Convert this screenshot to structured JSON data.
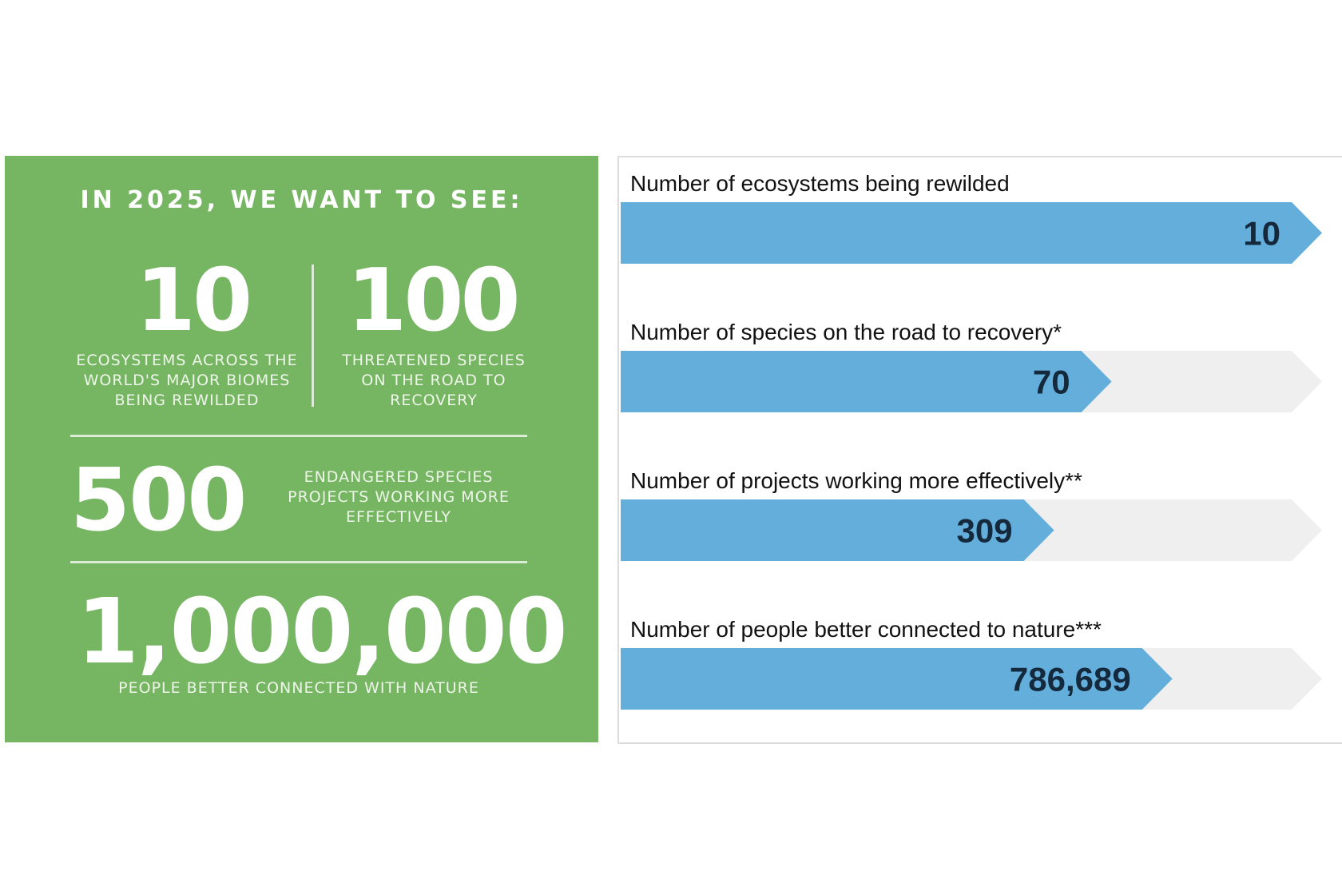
{
  "goals_panel": {
    "heading": "IN 2025, WE WANT TO SEE:",
    "colors": {
      "background": "#76b562",
      "text": "#ffffff"
    },
    "goals": [
      {
        "value": "10",
        "caption": "ECOSYSTEMS ACROSS THE WORLD'S MAJOR BIOMES BEING REWILDED"
      },
      {
        "value": "100",
        "caption": "THREATENED SPECIES ON THE ROAD TO RECOVERY"
      },
      {
        "value": "500",
        "caption": "ENDANGERED SPECIES PROJECTS WORKING MORE EFFECTIVELY"
      },
      {
        "value": "1,000,000",
        "caption": "PEOPLE BETTER CONNECTED WITH NATURE"
      }
    ]
  },
  "chart_data": {
    "type": "bar",
    "orientation": "horizontal",
    "title": "",
    "colors": {
      "bar": "#63aedb",
      "track": "#efefef",
      "value_text": "#15293d"
    },
    "bars": [
      {
        "label": "Number of ecosystems being rewilded",
        "value": 10,
        "value_label": "10",
        "target": 10
      },
      {
        "label": "Number of species on the road to recovery*",
        "value": 70,
        "value_label": "70",
        "target": 100
      },
      {
        "label": "Number of projects working more effectively**",
        "value": 309,
        "value_label": "309",
        "target": 500
      },
      {
        "label": "Number of people better connected to nature***",
        "value": 786689,
        "value_label": "786,689",
        "target": 1000000
      }
    ]
  }
}
